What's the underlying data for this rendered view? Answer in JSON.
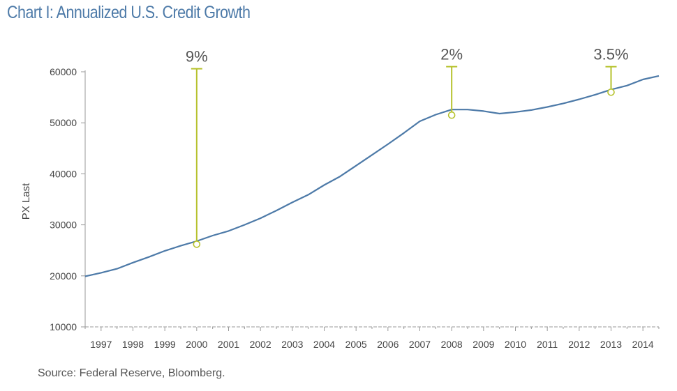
{
  "chart_data": {
    "type": "line",
    "title": "Chart I: Annualized U.S. Credit Growth",
    "xlabel": "",
    "ylabel": "PX Last",
    "ylim": [
      10000,
      60000
    ],
    "yticks": [
      10000,
      20000,
      30000,
      40000,
      50000,
      60000
    ],
    "xlim": [
      1996.5,
      2014.5
    ],
    "xtick_labels": [
      "1997",
      "1998",
      "1999",
      "2000",
      "2001",
      "2002",
      "2003",
      "2004",
      "2005",
      "2006",
      "2007",
      "2008",
      "2009",
      "2010",
      "2011",
      "2012",
      "2013",
      "2014"
    ],
    "series": [
      {
        "name": "PX Last",
        "color": "#4d7aa8",
        "x": [
          1996.5,
          1997.0,
          1997.5,
          1998.0,
          1998.5,
          1999.0,
          1999.5,
          2000.0,
          2000.5,
          2001.0,
          2001.5,
          2002.0,
          2002.5,
          2003.0,
          2003.5,
          2004.0,
          2004.5,
          2005.0,
          2005.5,
          2006.0,
          2006.5,
          2007.0,
          2007.5,
          2008.0,
          2008.5,
          2009.0,
          2009.5,
          2010.0,
          2010.5,
          2011.0,
          2011.5,
          2012.0,
          2012.5,
          2013.0,
          2013.5,
          2014.0,
          2014.5
        ],
        "values": [
          19900,
          20600,
          21400,
          22600,
          23700,
          24900,
          25900,
          26800,
          27900,
          28800,
          30000,
          31300,
          32800,
          34400,
          35900,
          37800,
          39500,
          41600,
          43700,
          45800,
          48000,
          50300,
          51600,
          52600,
          52600,
          52300,
          51800,
          52100,
          52500,
          53100,
          53800,
          54600,
          55500,
          56500,
          57300,
          58500,
          59200
        ]
      }
    ],
    "annotations": [
      {
        "label": "9%",
        "x": 2000.0,
        "y": 26200,
        "top": 60600
      },
      {
        "label": "2%",
        "x": 2008.0,
        "y": 51500,
        "top": 61000
      },
      {
        "label": "3.5%",
        "x": 2013.0,
        "y": 56000,
        "top": 61000
      }
    ],
    "marker_color": "#b6c22d",
    "source": "Source: Federal Reserve, Bloomberg."
  }
}
